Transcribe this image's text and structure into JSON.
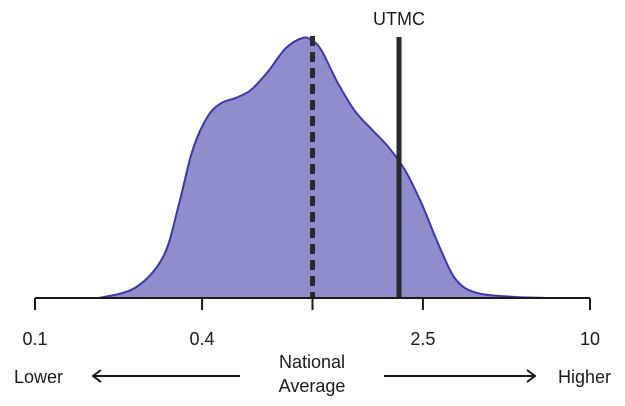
{
  "chart_data": {
    "type": "area",
    "x_scale": "log",
    "xlim": [
      0.1,
      10
    ],
    "x_ticks": [
      0.1,
      0.4,
      1.0,
      2.5,
      10
    ],
    "x_tick_labels": [
      "0.1",
      "0.4",
      "",
      "2.5",
      "10"
    ],
    "y_axis_shown": false,
    "grid": false,
    "colors": {
      "fill": "#8f8dcb",
      "stroke": "#3d35b0",
      "line": "#2a2a2a"
    },
    "density": {
      "x": [
        0.17,
        0.23,
        0.29,
        0.33,
        0.37,
        0.42,
        0.47,
        0.53,
        0.6,
        0.69,
        0.8,
        0.92,
        1.0,
        1.08,
        1.23,
        1.42,
        1.63,
        1.88,
        2.16,
        2.48,
        2.86,
        3.29,
        3.9,
        5.2,
        7.2
      ],
      "y": [
        0.0,
        0.04,
        0.16,
        0.36,
        0.57,
        0.7,
        0.75,
        0.77,
        0.8,
        0.87,
        0.96,
        1.0,
        0.99,
        0.95,
        0.83,
        0.72,
        0.65,
        0.58,
        0.49,
        0.36,
        0.2,
        0.07,
        0.02,
        0.005,
        0.0
      ]
    },
    "reference_lines": [
      {
        "label": "",
        "x": 1.0,
        "style": "dashed"
      },
      {
        "label": "UTMC",
        "x": 2.05,
        "style": "solid"
      }
    ],
    "annotations": {
      "lower": "Lower",
      "higher": "Higher",
      "center_line1": "National",
      "center_line2": "Average"
    }
  }
}
